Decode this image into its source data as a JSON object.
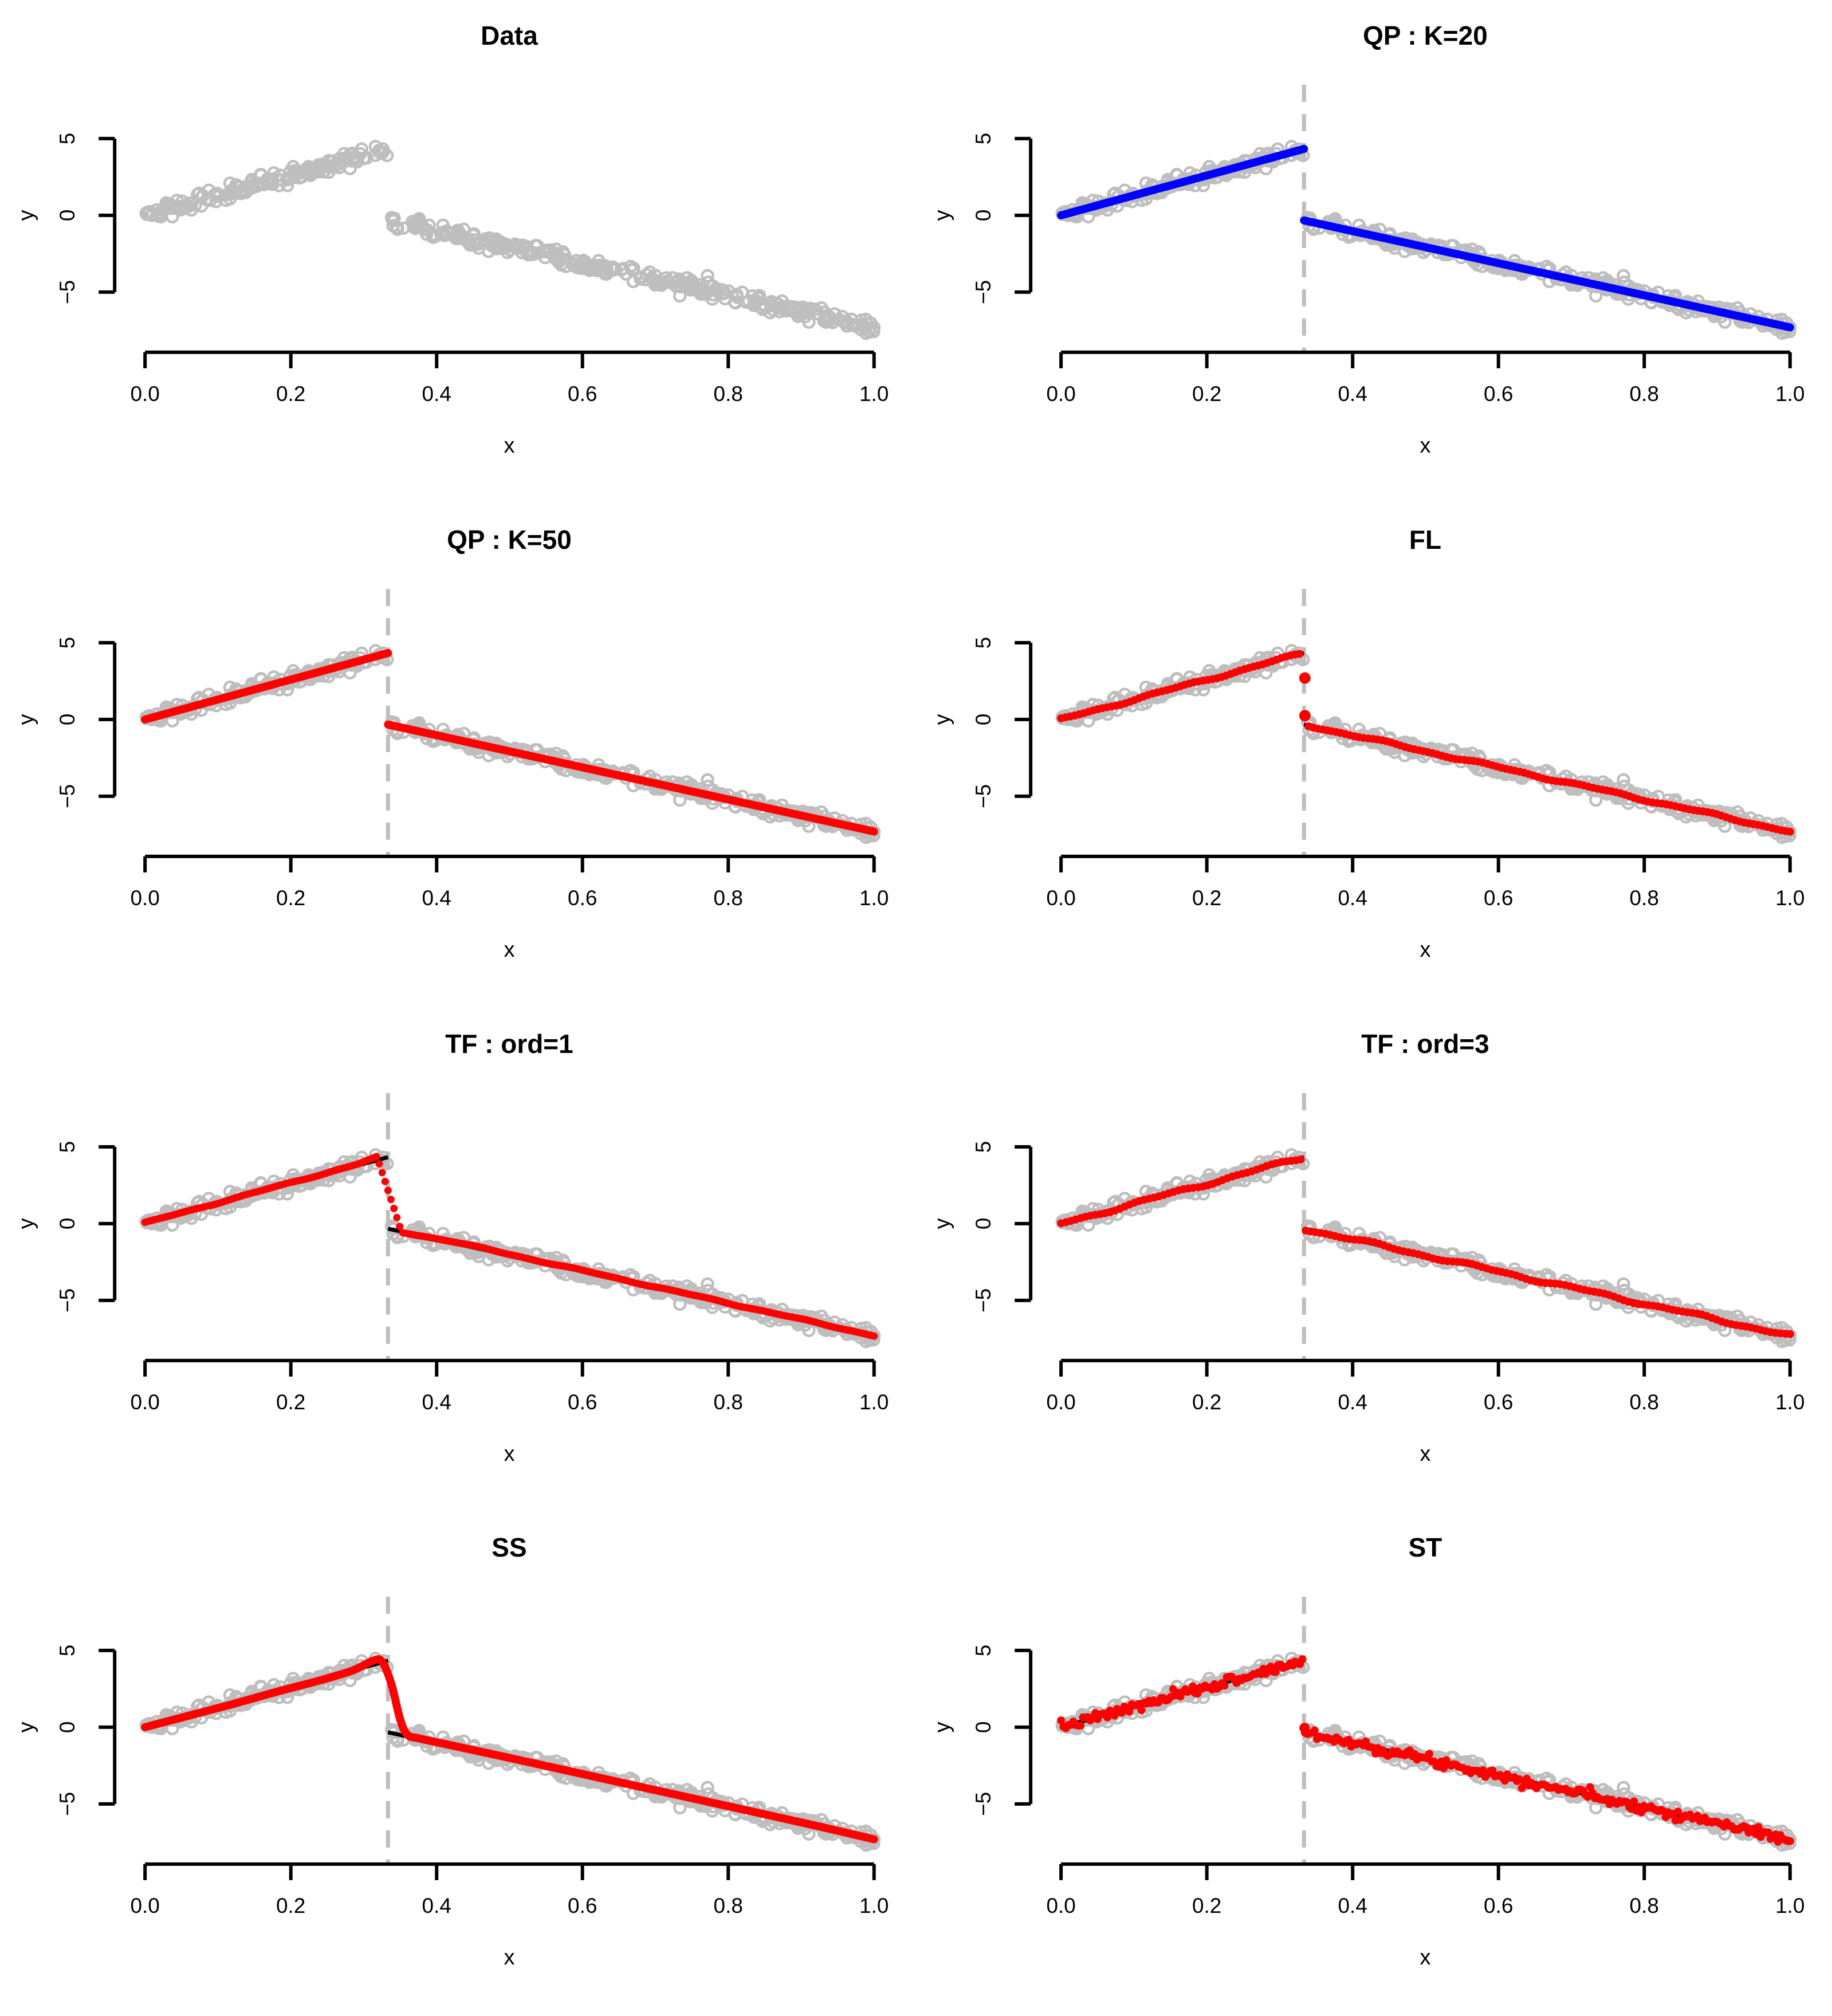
{
  "figure": {
    "background": "#FFFFFF",
    "rows": 4,
    "cols": 2
  },
  "colors": {
    "scatter": "#BEBEBE",
    "break_line": "#BEBEBE",
    "truth": "#000000",
    "axis": "#000000",
    "fit_blue": "#0000FF",
    "fit_red": "#FF0000"
  },
  "axes": {
    "xlabel": "x",
    "ylabel": "y",
    "x_tick_labels": [
      "0.0",
      "0.2",
      "0.4",
      "0.6",
      "0.8",
      "1.0"
    ],
    "x_tick_values": [
      0,
      0.2,
      0.4,
      0.6,
      0.8,
      1.0
    ],
    "y_tick_labels": [
      "−5",
      "0",
      "5"
    ],
    "y_tick_values": [
      -5,
      0,
      5
    ],
    "xlim": [
      0,
      1
    ],
    "ylim": [
      -8.8,
      8.8
    ],
    "grid": false
  },
  "truth": {
    "breakpoint": 0.3333,
    "segments": [
      {
        "x": [
          0,
          0.3333
        ],
        "y": [
          0,
          4.33
        ]
      },
      {
        "x": [
          0.3333,
          1
        ],
        "y": [
          -0.33,
          -7.3
        ]
      }
    ]
  },
  "scatter": {
    "n": 500,
    "noise_sd": 0.25,
    "seed": 42
  },
  "chart_data": [
    {
      "type": "scatter",
      "title": "Data",
      "xlabel": "x",
      "ylabel": "y",
      "break_line": false,
      "fit": {
        "style": "none"
      }
    },
    {
      "type": "scatter",
      "title": "QP : K=20",
      "xlabel": "x",
      "ylabel": "y",
      "break_line": true,
      "fit": {
        "style": "segments",
        "color": "#0000FF",
        "line_width": 14
      }
    },
    {
      "type": "scatter",
      "title": "QP : K=50",
      "xlabel": "x",
      "ylabel": "y",
      "break_line": true,
      "fit": {
        "style": "segments",
        "color": "#FF0000",
        "line_width": 14
      }
    },
    {
      "type": "scatter",
      "title": "FL",
      "xlabel": "x",
      "ylabel": "y",
      "break_line": true,
      "fit": {
        "style": "wiggle-dots",
        "color": "#FF0000",
        "n": 160,
        "amp": 0.1,
        "phase": 1.3,
        "dot_r": 7,
        "gap": [
          0.3333,
          0.335
        ],
        "extra_dots": [
          [
            0.3345,
            2.7
          ],
          [
            0.3345,
            0.25
          ]
        ],
        "extra_dot_r": 10
      }
    },
    {
      "type": "scatter",
      "title": "TF : ord=1",
      "xlabel": "x",
      "ylabel": "y",
      "break_line": true,
      "fit": {
        "style": "keypoint-dots",
        "color": "#FF0000",
        "n": 250,
        "amp": 0.05,
        "phase": 0.7,
        "dot_r": 6.5,
        "keypoints": [
          [
            0,
            0.05
          ],
          [
            0.29,
            3.85
          ],
          [
            0.318,
            4.33
          ],
          [
            0.352,
            -0.55
          ],
          [
            0.42,
            -1.15
          ],
          [
            1,
            -7.3
          ]
        ]
      }
    },
    {
      "type": "scatter",
      "title": "TF : ord=3",
      "xlabel": "x",
      "ylabel": "y",
      "break_line": true,
      "fit": {
        "style": "wiggle-dots",
        "color": "#FF0000",
        "n": 150,
        "amp": 0.13,
        "phase": 2.1,
        "dot_r": 7,
        "gap": [
          0.3333,
          0.3335
        ],
        "extra_dots": []
      }
    },
    {
      "type": "scatter",
      "title": "SS",
      "xlabel": "x",
      "ylabel": "y",
      "break_line": true,
      "fit": {
        "style": "smooth-line",
        "color": "#FF0000",
        "line_width": 14,
        "keypoints": [
          [
            0,
            0
          ],
          [
            0.06,
            0.75
          ],
          [
            0.12,
            1.5
          ],
          [
            0.18,
            2.3
          ],
          [
            0.24,
            3.05
          ],
          [
            0.285,
            3.7
          ],
          [
            0.312,
            4.32
          ],
          [
            0.325,
            4.28
          ],
          [
            0.338,
            2.8
          ],
          [
            0.35,
            0.5
          ],
          [
            0.36,
            -0.5
          ],
          [
            0.375,
            -0.72
          ],
          [
            0.42,
            -1.18
          ],
          [
            0.5,
            -2.0
          ],
          [
            0.6,
            -3.05
          ],
          [
            0.7,
            -4.1
          ],
          [
            0.8,
            -5.15
          ],
          [
            0.9,
            -6.2
          ],
          [
            1,
            -7.3
          ]
        ]
      }
    },
    {
      "type": "scatter",
      "title": "ST",
      "xlabel": "x",
      "ylabel": "y",
      "break_line": true,
      "fit": {
        "style": "jitter-dots",
        "color": "#FF0000",
        "n": 300,
        "sd": 0.16,
        "seed": 7,
        "dot_r": 7,
        "extra_dots": [
          [
            0.334,
            -0.05
          ]
        ],
        "extra_dot_r": 9
      }
    }
  ]
}
